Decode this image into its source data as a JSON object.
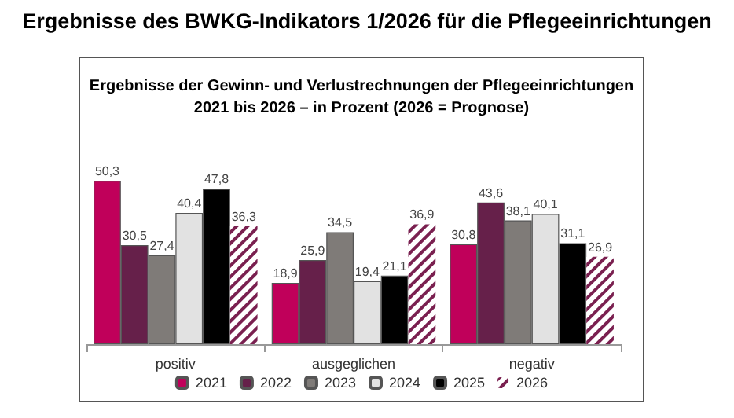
{
  "chart_data": {
    "type": "bar",
    "title": "Ergebnisse des BWKG-Indikators 1/2026 für die Pflegeeinrichtungen",
    "subtitle": "Ergebnisse der Gewinn- und Verlustrechnungen der Pflegeeinrichtungen\n2021 bis 2026 – in Prozent (2026 = Prognose)",
    "categories": [
      "positiv",
      "ausgeglichen",
      "negativ"
    ],
    "series": [
      {
        "name": "2021",
        "color": "#c0005a",
        "values": [
          50.3,
          18.9,
          30.8
        ],
        "value_labels": [
          "50,3",
          "18,9",
          "30,8"
        ]
      },
      {
        "name": "2022",
        "color": "#66204a",
        "values": [
          30.5,
          25.9,
          43.6
        ],
        "value_labels": [
          "30,5",
          "25,9",
          "43,6"
        ]
      },
      {
        "name": "2023",
        "color": "#7f7b78",
        "values": [
          27.4,
          34.5,
          38.1
        ],
        "value_labels": [
          "27,4",
          "34,5",
          "38,1"
        ]
      },
      {
        "name": "2024",
        "color": "#e2e2e2",
        "values": [
          40.4,
          19.4,
          40.1
        ],
        "value_labels": [
          "40,4",
          "19,4",
          "40,1"
        ]
      },
      {
        "name": "2025",
        "color": "#000000",
        "values": [
          47.8,
          21.1,
          31.1
        ],
        "value_labels": [
          "47,8",
          "21,1",
          "31,1"
        ]
      },
      {
        "name": "2026",
        "color": "#7a2050",
        "values": [
          36.3,
          36.9,
          26.9
        ],
        "value_labels": [
          "36,3",
          "36,9",
          "26,9"
        ]
      }
    ],
    "legend": "bottom"
  }
}
